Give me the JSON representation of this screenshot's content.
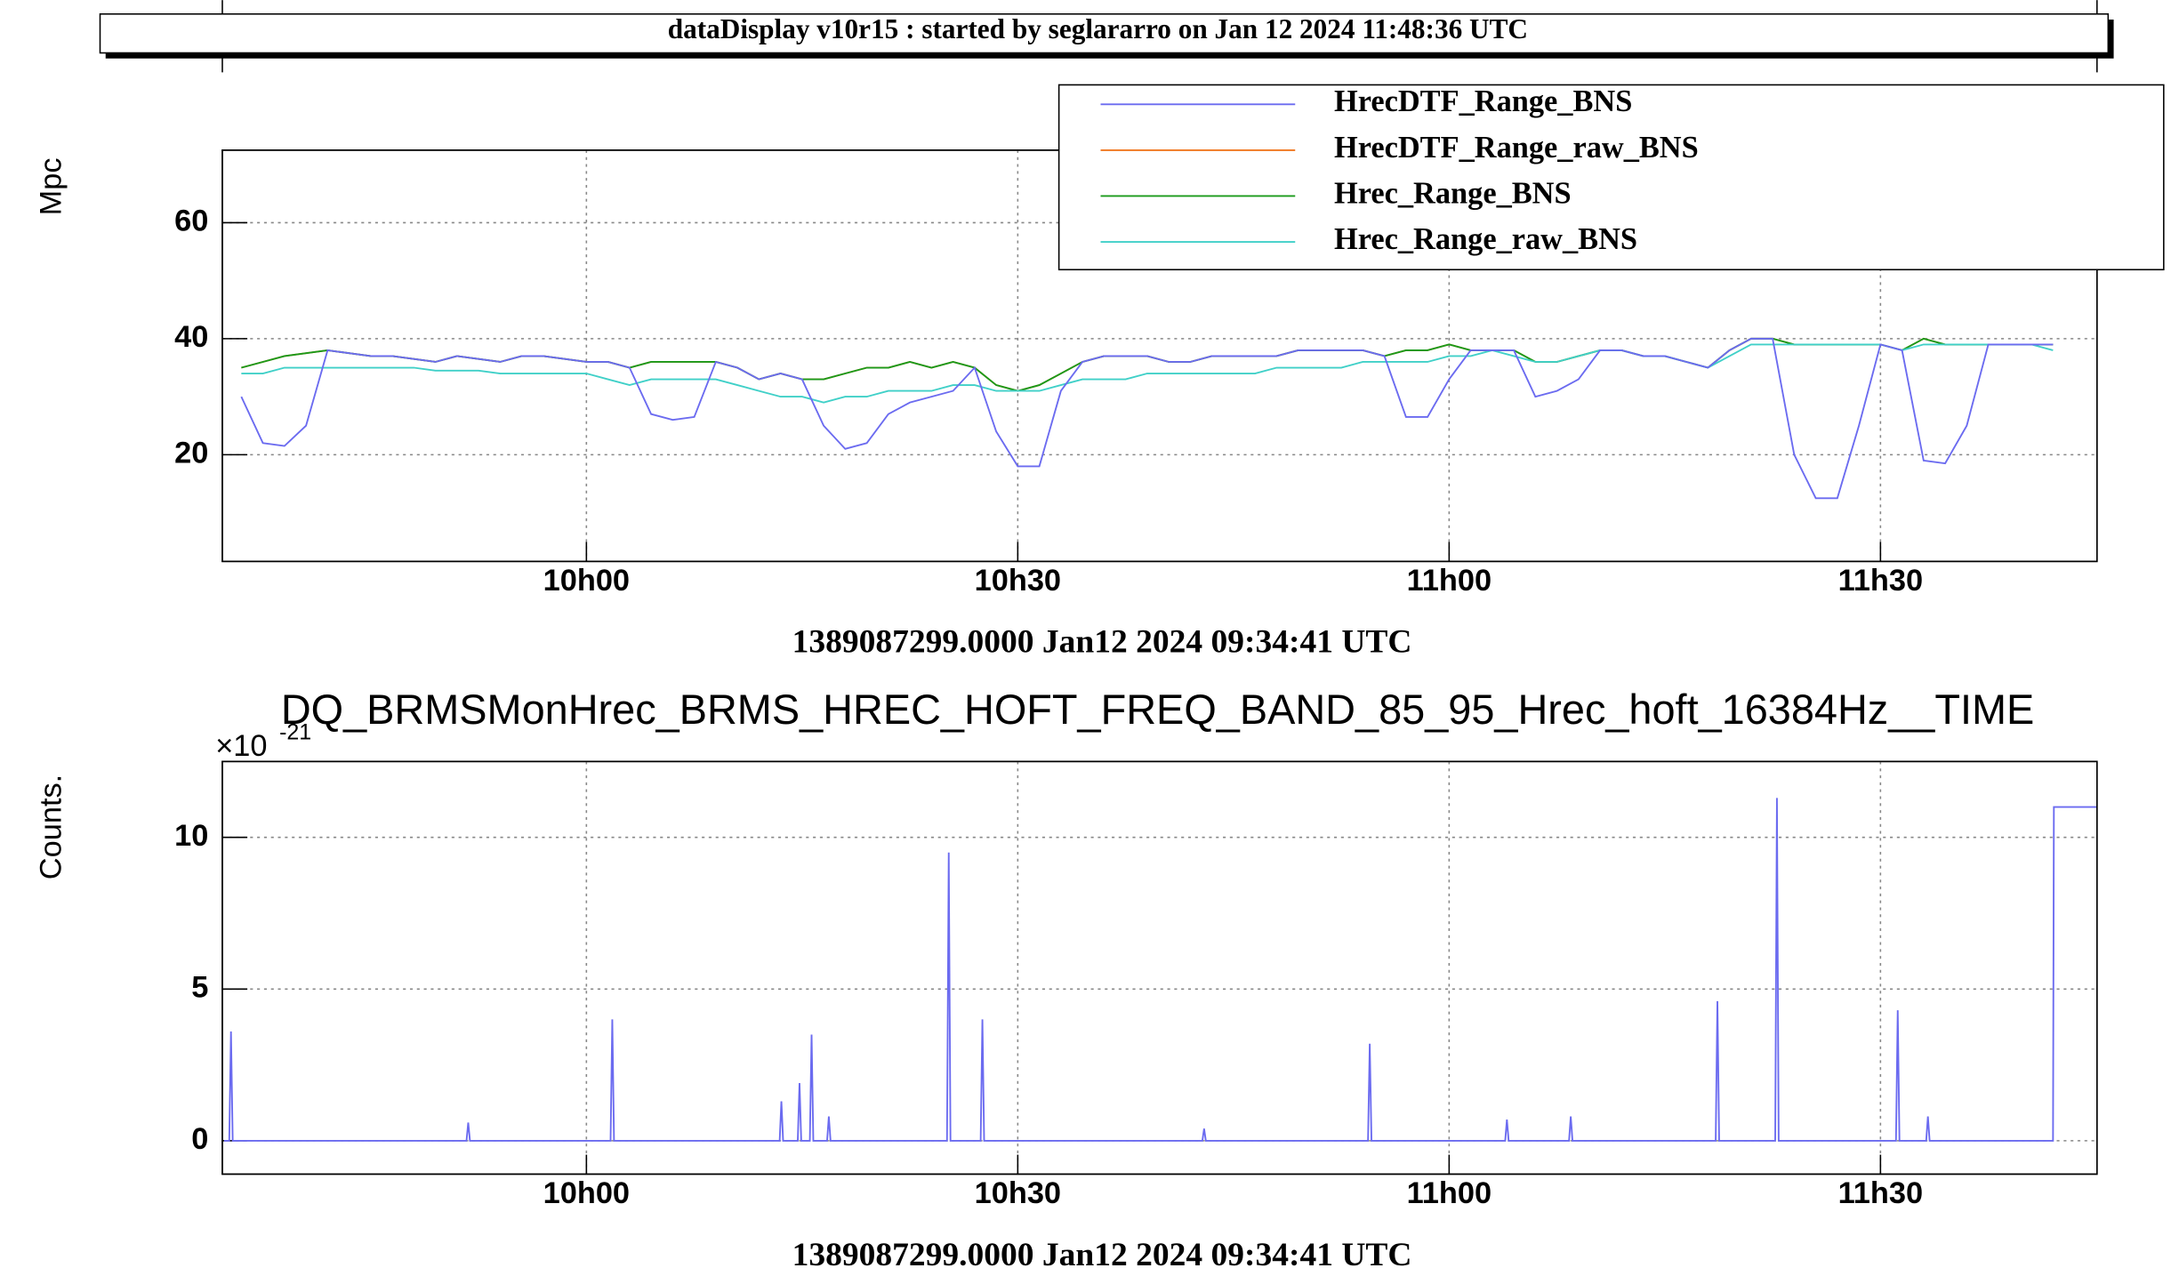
{
  "header": {
    "title": "dataDisplay v10r15 : started by seglararro on Jan 12 2024 11:48:36 UTC"
  },
  "chart_data": [
    {
      "type": "line",
      "ylabel": "Mpc",
      "xlabel": "1389087299.0000 Jan12 2024 09:34:41 UTC",
      "xlim": [
        9.578,
        11.751
      ],
      "ylim": [
        1.6,
        72.5
      ],
      "xticks": [
        {
          "value": 10,
          "label": "10h00"
        },
        {
          "value": 10.5,
          "label": "10h30"
        },
        {
          "value": 11,
          "label": "11h00"
        },
        {
          "value": 11.5,
          "label": "11h30"
        }
      ],
      "yticks": [
        20,
        40,
        60
      ],
      "grid": true,
      "legend": "top-right",
      "x": [
        9.6,
        9.625,
        9.65,
        9.675,
        9.7,
        9.725,
        9.75,
        9.775,
        9.8,
        9.825,
        9.85,
        9.875,
        9.9,
        9.925,
        9.95,
        9.975,
        10,
        10.025,
        10.05,
        10.075,
        10.1,
        10.125,
        10.15,
        10.175,
        10.2,
        10.225,
        10.25,
        10.275,
        10.3,
        10.325,
        10.35,
        10.375,
        10.4,
        10.425,
        10.45,
        10.475,
        10.5,
        10.525,
        10.55,
        10.575,
        10.6,
        10.625,
        10.65,
        10.675,
        10.7,
        10.725,
        10.75,
        10.775,
        10.8,
        10.825,
        10.85,
        10.875,
        10.9,
        10.925,
        10.95,
        10.975,
        11,
        11.025,
        11.05,
        11.075,
        11.1,
        11.125,
        11.15,
        11.175,
        11.2,
        11.225,
        11.25,
        11.275,
        11.3,
        11.325,
        11.35,
        11.375,
        11.4,
        11.425,
        11.45,
        11.475,
        11.5,
        11.525,
        11.55,
        11.575,
        11.6,
        11.625,
        11.65,
        11.675,
        11.7
      ],
      "series": [
        {
          "name": "HrecDTF_Range_raw_BNS",
          "color": "#f07820",
          "values": [
            35,
            36,
            37,
            37.5,
            38,
            37.5,
            37,
            37,
            36.5,
            36,
            37,
            36.5,
            36,
            37,
            37,
            36.5,
            36,
            36,
            35,
            36,
            36,
            36,
            36,
            35,
            33,
            34,
            33,
            33,
            34,
            35,
            35,
            36,
            35,
            36,
            35,
            32,
            31,
            32,
            34,
            36,
            37,
            37,
            37,
            36,
            36,
            37,
            37,
            37,
            37,
            38,
            38,
            38,
            38,
            37,
            38,
            38,
            39,
            38,
            38,
            38,
            36,
            36,
            37,
            38,
            38,
            37,
            37,
            36,
            35,
            38,
            40,
            40,
            39,
            39,
            39,
            39,
            39,
            38,
            40,
            39,
            39,
            39,
            39,
            39,
            39
          ]
        },
        {
          "name": "Hrec_Range_BNS",
          "color": "#1a9a1a",
          "values": [
            35,
            36,
            37,
            37.5,
            38,
            37.5,
            37,
            37,
            36.5,
            36,
            37,
            36.5,
            36,
            37,
            37,
            36.5,
            36,
            36,
            35,
            36,
            36,
            36,
            36,
            35,
            33,
            34,
            33,
            33,
            34,
            35,
            35,
            36,
            35,
            36,
            35,
            32,
            31,
            32,
            34,
            36,
            37,
            37,
            37,
            36,
            36,
            37,
            37,
            37,
            37,
            38,
            38,
            38,
            38,
            37,
            38,
            38,
            39,
            38,
            38,
            38,
            36,
            36,
            37,
            38,
            38,
            37,
            37,
            36,
            35,
            38,
            40,
            40,
            39,
            39,
            39,
            39,
            39,
            38,
            40,
            39,
            39,
            39,
            39,
            39,
            39
          ]
        },
        {
          "name": "Hrec_Range_raw_BNS",
          "color": "#40d0c8",
          "values": [
            34,
            34,
            35,
            35,
            35,
            35,
            35,
            35,
            35,
            34.5,
            34.5,
            34.5,
            34,
            34,
            34,
            34,
            34,
            33,
            32,
            33,
            33,
            33,
            33,
            32,
            31,
            30,
            30,
            29,
            30,
            30,
            31,
            31,
            31,
            32,
            32,
            31,
            31,
            31,
            32,
            33,
            33,
            33,
            34,
            34,
            34,
            34,
            34,
            34,
            35,
            35,
            35,
            35,
            36,
            36,
            36,
            36,
            37,
            37,
            38,
            37,
            36,
            36,
            37,
            38,
            38,
            37,
            37,
            36,
            35,
            37,
            39,
            39,
            39,
            39,
            39,
            39,
            39,
            38,
            39,
            39,
            39,
            39,
            39,
            39,
            38
          ]
        },
        {
          "name": "HrecDTF_Range_BNS",
          "color": "#6b6bf0",
          "values": [
            30,
            22,
            21.5,
            25,
            38,
            37.5,
            37,
            37,
            36.5,
            36,
            37,
            36.5,
            36,
            37,
            37,
            36.5,
            36,
            36,
            35,
            27,
            26,
            26.5,
            36,
            35,
            33,
            34,
            33,
            25,
            21,
            22,
            27,
            29,
            30,
            31,
            35,
            24,
            18,
            18,
            31,
            36,
            37,
            37,
            37,
            36,
            36,
            37,
            37,
            37,
            37,
            38,
            38,
            38,
            38,
            37,
            26.5,
            26.5,
            33,
            38,
            38,
            38,
            30,
            31,
            33,
            38,
            38,
            37,
            37,
            36,
            35,
            38,
            40,
            40,
            20,
            12.5,
            12.5,
            25,
            39,
            38,
            19,
            18.5,
            25,
            39,
            39,
            39,
            39
          ]
        }
      ]
    },
    {
      "type": "line",
      "title": "DQ_BRMSMonHrec_BRMS_HREC_HOFT_FREQ_BAND_85_95_Hrec_hoft_16384Hz__TIME",
      "ylabel": "Counts.",
      "xlabel": "1389087299.0000 Jan12 2024 09:34:41 UTC",
      "y_multiplier": {
        "base": "×10",
        "exponent": "-21"
      },
      "xlim": [
        9.578,
        11.751
      ],
      "ylim": [
        -1.1,
        12.5
      ],
      "xticks": [
        {
          "value": 10,
          "label": "10h00"
        },
        {
          "value": 10.5,
          "label": "10h30"
        },
        {
          "value": 11,
          "label": "11h00"
        },
        {
          "value": 11.5,
          "label": "11h30"
        }
      ],
      "yticks": [
        0,
        5,
        10
      ],
      "grid": true,
      "color": "#6b6bf0",
      "x": [
        9.58,
        9.586,
        9.588,
        9.59,
        9.861,
        9.863,
        9.865,
        10.028,
        10.03,
        10.032,
        10.224,
        10.226,
        10.228,
        10.245,
        10.247,
        10.249,
        10.259,
        10.261,
        10.263,
        10.279,
        10.281,
        10.283,
        10.418,
        10.42,
        10.422,
        10.457,
        10.459,
        10.461,
        10.714,
        10.716,
        10.718,
        10.906,
        10.908,
        10.91,
        11.065,
        11.067,
        11.069,
        11.139,
        11.141,
        11.143,
        11.309,
        11.311,
        11.313,
        11.378,
        11.38,
        11.382,
        11.518,
        11.52,
        11.522,
        11.553,
        11.555,
        11.557,
        11.7,
        11.701,
        11.751
      ],
      "values": [
        0,
        0,
        3.6,
        0,
        0,
        0.6,
        0,
        0,
        4,
        0,
        0,
        1.3,
        0,
        0,
        1.9,
        0,
        0,
        3.5,
        0,
        0,
        0.8,
        0,
        0,
        9.5,
        0,
        0,
        4,
        0,
        0,
        0.4,
        0,
        0,
        3.2,
        0,
        0,
        0.7,
        0,
        0,
        0.8,
        0,
        0,
        4.6,
        0,
        0,
        11.3,
        0,
        0,
        4.3,
        0,
        0,
        0.8,
        0,
        0,
        11,
        11
      ]
    }
  ]
}
